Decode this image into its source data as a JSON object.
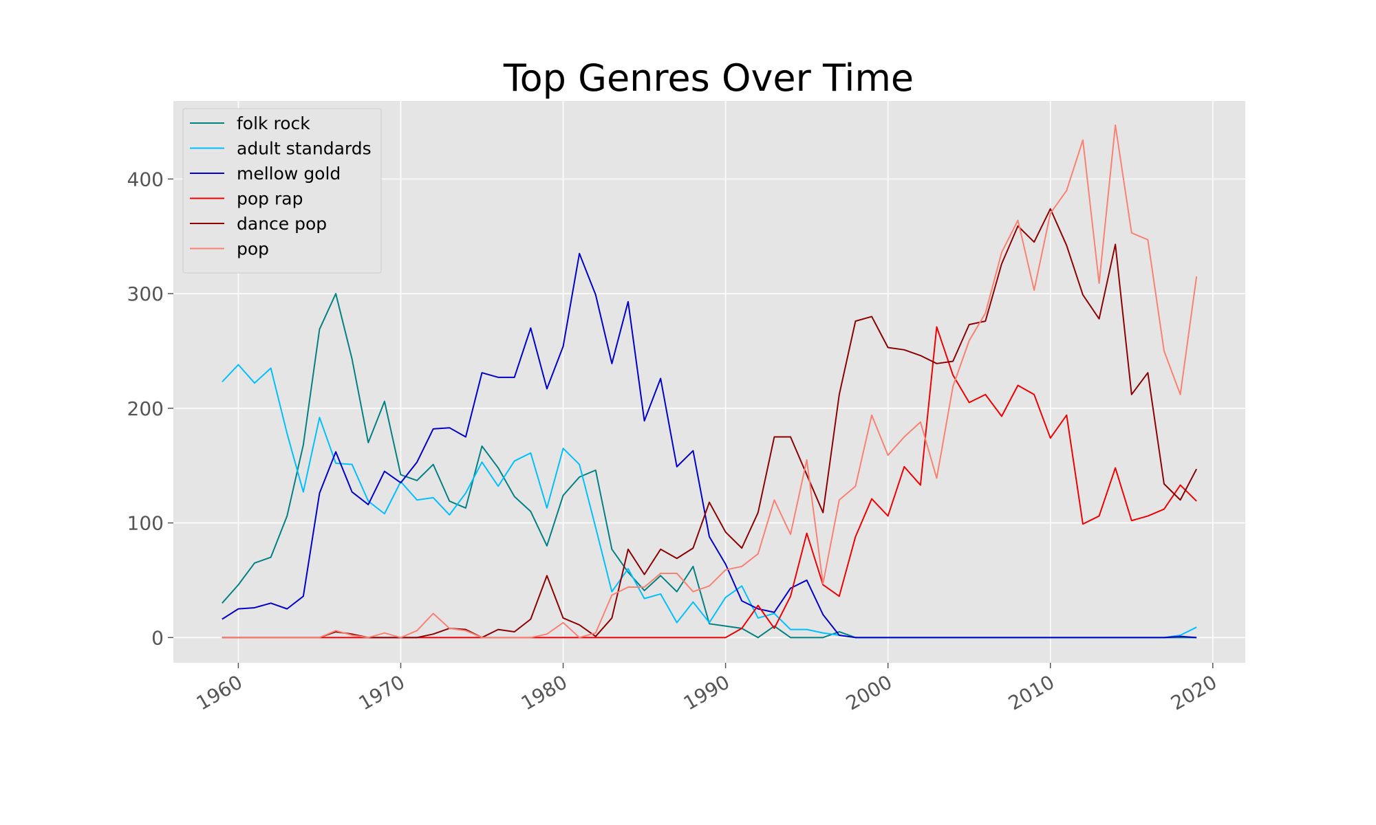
{
  "chart_data": {
    "type": "line",
    "title": "Top Genres Over Time",
    "xlabel": "",
    "ylabel": "",
    "xlim": [
      1956,
      2022
    ],
    "ylim": [
      -22,
      468
    ],
    "x_ticks": [
      1960,
      1970,
      1980,
      1990,
      2000,
      2010,
      2020
    ],
    "x_tick_labels": [
      "1960",
      "1970",
      "1980",
      "1990",
      "2000",
      "2010",
      "2020"
    ],
    "y_ticks": [
      0,
      100,
      200,
      300,
      400
    ],
    "y_tick_labels": [
      "0",
      "100",
      "200",
      "300",
      "400"
    ],
    "grid": true,
    "legend_position": "upper-left",
    "x": [
      1959,
      1960,
      1961,
      1962,
      1963,
      1964,
      1965,
      1966,
      1967,
      1968,
      1969,
      1970,
      1971,
      1972,
      1973,
      1974,
      1975,
      1976,
      1977,
      1978,
      1979,
      1980,
      1981,
      1982,
      1983,
      1984,
      1985,
      1986,
      1987,
      1988,
      1989,
      1990,
      1991,
      1992,
      1993,
      1994,
      1995,
      1996,
      1997,
      1998,
      1999,
      2000,
      2001,
      2002,
      2003,
      2004,
      2005,
      2006,
      2007,
      2008,
      2009,
      2010,
      2011,
      2012,
      2013,
      2014,
      2015,
      2016,
      2017,
      2018,
      2019
    ],
    "series": [
      {
        "name": "folk rock",
        "color": "#008080",
        "values": [
          30,
          46,
          65,
          70,
          106,
          168,
          269,
          300,
          243,
          170,
          206,
          142,
          137,
          151,
          119,
          113,
          167,
          148,
          123,
          110,
          80,
          124,
          140,
          146,
          77,
          57,
          41,
          54,
          40,
          62,
          12,
          10,
          8,
          0,
          10,
          0,
          0,
          0,
          5,
          0,
          0,
          0,
          0,
          0,
          0,
          0,
          0,
          0,
          0,
          0,
          0,
          0,
          0,
          0,
          0,
          0,
          0,
          0,
          0,
          0,
          0
        ]
      },
      {
        "name": "adult standards",
        "color": "#00bfff",
        "values": [
          223,
          238,
          222,
          235,
          178,
          127,
          192,
          152,
          151,
          119,
          108,
          136,
          120,
          122,
          107,
          126,
          153,
          132,
          154,
          161,
          113,
          165,
          151,
          96,
          40,
          60,
          34,
          38,
          13,
          31,
          13,
          35,
          45,
          17,
          21,
          7,
          7,
          4,
          2,
          0,
          0,
          0,
          0,
          0,
          0,
          0,
          0,
          0,
          0,
          0,
          0,
          0,
          0,
          0,
          0,
          0,
          0,
          0,
          0,
          2,
          9
        ]
      },
      {
        "name": "mellow gold",
        "color": "#0000c8",
        "values": [
          16,
          25,
          26,
          30,
          25,
          36,
          126,
          162,
          127,
          116,
          145,
          135,
          153,
          182,
          183,
          175,
          231,
          227,
          227,
          270,
          217,
          254,
          335,
          299,
          239,
          293,
          189,
          226,
          149,
          163,
          88,
          64,
          32,
          25,
          22,
          43,
          50,
          20,
          2,
          0,
          0,
          0,
          0,
          0,
          0,
          0,
          0,
          0,
          0,
          0,
          0,
          0,
          0,
          0,
          0,
          0,
          0,
          0,
          0,
          1,
          0
        ]
      },
      {
        "name": "pop rap",
        "color": "#ee0000",
        "values": [
          0,
          0,
          0,
          0,
          0,
          0,
          0,
          0,
          0,
          0,
          0,
          0,
          0,
          0,
          0,
          0,
          0,
          0,
          0,
          0,
          0,
          0,
          0,
          0,
          0,
          0,
          0,
          0,
          0,
          0,
          0,
          0,
          8,
          28,
          8,
          36,
          91,
          46,
          36,
          88,
          121,
          106,
          149,
          133,
          271,
          229,
          205,
          212,
          193,
          220,
          212,
          174,
          194,
          99,
          106,
          148,
          102,
          106,
          112,
          133,
          119
        ]
      },
      {
        "name": "dance pop",
        "color": "#8b0000",
        "values": [
          0,
          0,
          0,
          0,
          0,
          0,
          0,
          5,
          3,
          0,
          0,
          0,
          0,
          3,
          8,
          7,
          0,
          7,
          5,
          16,
          54,
          17,
          11,
          1,
          17,
          77,
          55,
          77,
          69,
          78,
          118,
          92,
          78,
          109,
          175,
          175,
          142,
          109,
          212,
          276,
          280,
          253,
          251,
          246,
          239,
          241,
          273,
          276,
          326,
          359,
          345,
          374,
          342,
          299,
          278,
          343,
          212,
          231,
          134,
          120,
          147
        ]
      },
      {
        "name": "pop",
        "color": "#fa8072",
        "values": [
          0,
          0,
          0,
          0,
          0,
          0,
          0,
          6,
          2,
          0,
          4,
          0,
          6,
          21,
          8,
          6,
          0,
          0,
          0,
          0,
          3,
          13,
          0,
          4,
          37,
          44,
          44,
          56,
          56,
          40,
          45,
          59,
          62,
          73,
          120,
          90,
          155,
          47,
          120,
          132,
          194,
          159,
          175,
          188,
          139,
          219,
          259,
          283,
          336,
          364,
          303,
          370,
          390,
          434,
          309,
          447,
          353,
          347,
          250,
          212,
          315
        ]
      }
    ]
  }
}
